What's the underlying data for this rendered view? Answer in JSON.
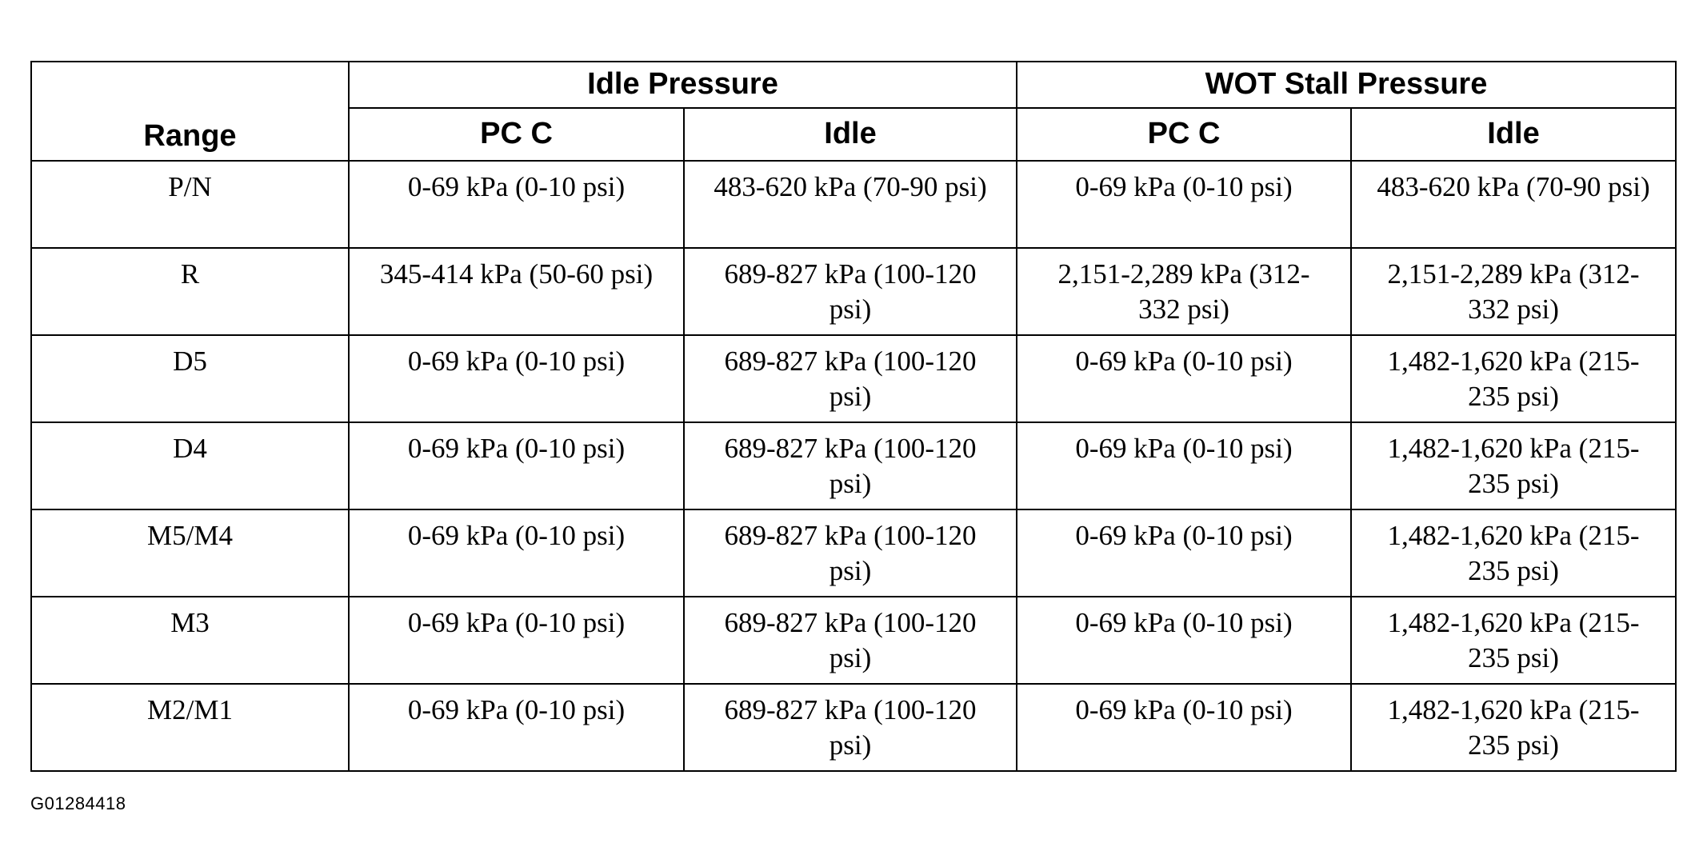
{
  "table": {
    "header": {
      "range": "Range",
      "groups": [
        "Idle Pressure",
        "WOT Stall Pressure"
      ],
      "subheaders": [
        "PC C",
        "Idle",
        "PC C",
        "Idle"
      ]
    },
    "rows": [
      [
        "P/N",
        "0-69 kPa (0-10 psi)",
        "483-620 kPa (70-90 psi)",
        "0-69 kPa (0-10 psi)",
        "483-620 kPa (70-90 psi)"
      ],
      [
        "R",
        "345-414 kPa (50-60 psi)",
        "689-827 kPa (100-120 psi)",
        "2,151-2,289 kPa (312-332 psi)",
        "2,151-2,289 kPa (312-332 psi)"
      ],
      [
        "D5",
        "0-69 kPa (0-10 psi)",
        "689-827 kPa (100-120 psi)",
        "0-69 kPa (0-10 psi)",
        "1,482-1,620 kPa (215-235 psi)"
      ],
      [
        "D4",
        "0-69 kPa (0-10 psi)",
        "689-827 kPa (100-120 psi)",
        "0-69 kPa (0-10 psi)",
        "1,482-1,620 kPa (215-235 psi)"
      ],
      [
        "M5/M4",
        "0-69 kPa (0-10 psi)",
        "689-827 kPa (100-120 psi)",
        "0-69 kPa (0-10 psi)",
        "1,482-1,620 kPa (215-235 psi)"
      ],
      [
        "M3",
        "0-69 kPa (0-10 psi)",
        "689-827 kPa (100-120 psi)",
        "0-69 kPa (0-10 psi)",
        "1,482-1,620 kPa (215-235 psi)"
      ],
      [
        "M2/M1",
        "0-69 kPa (0-10 psi)",
        "689-827 kPa (100-120 psi)",
        "0-69 kPa (0-10 psi)",
        "1,482-1,620 kPa (215-235 psi)"
      ]
    ]
  },
  "figure_id": "G01284418"
}
